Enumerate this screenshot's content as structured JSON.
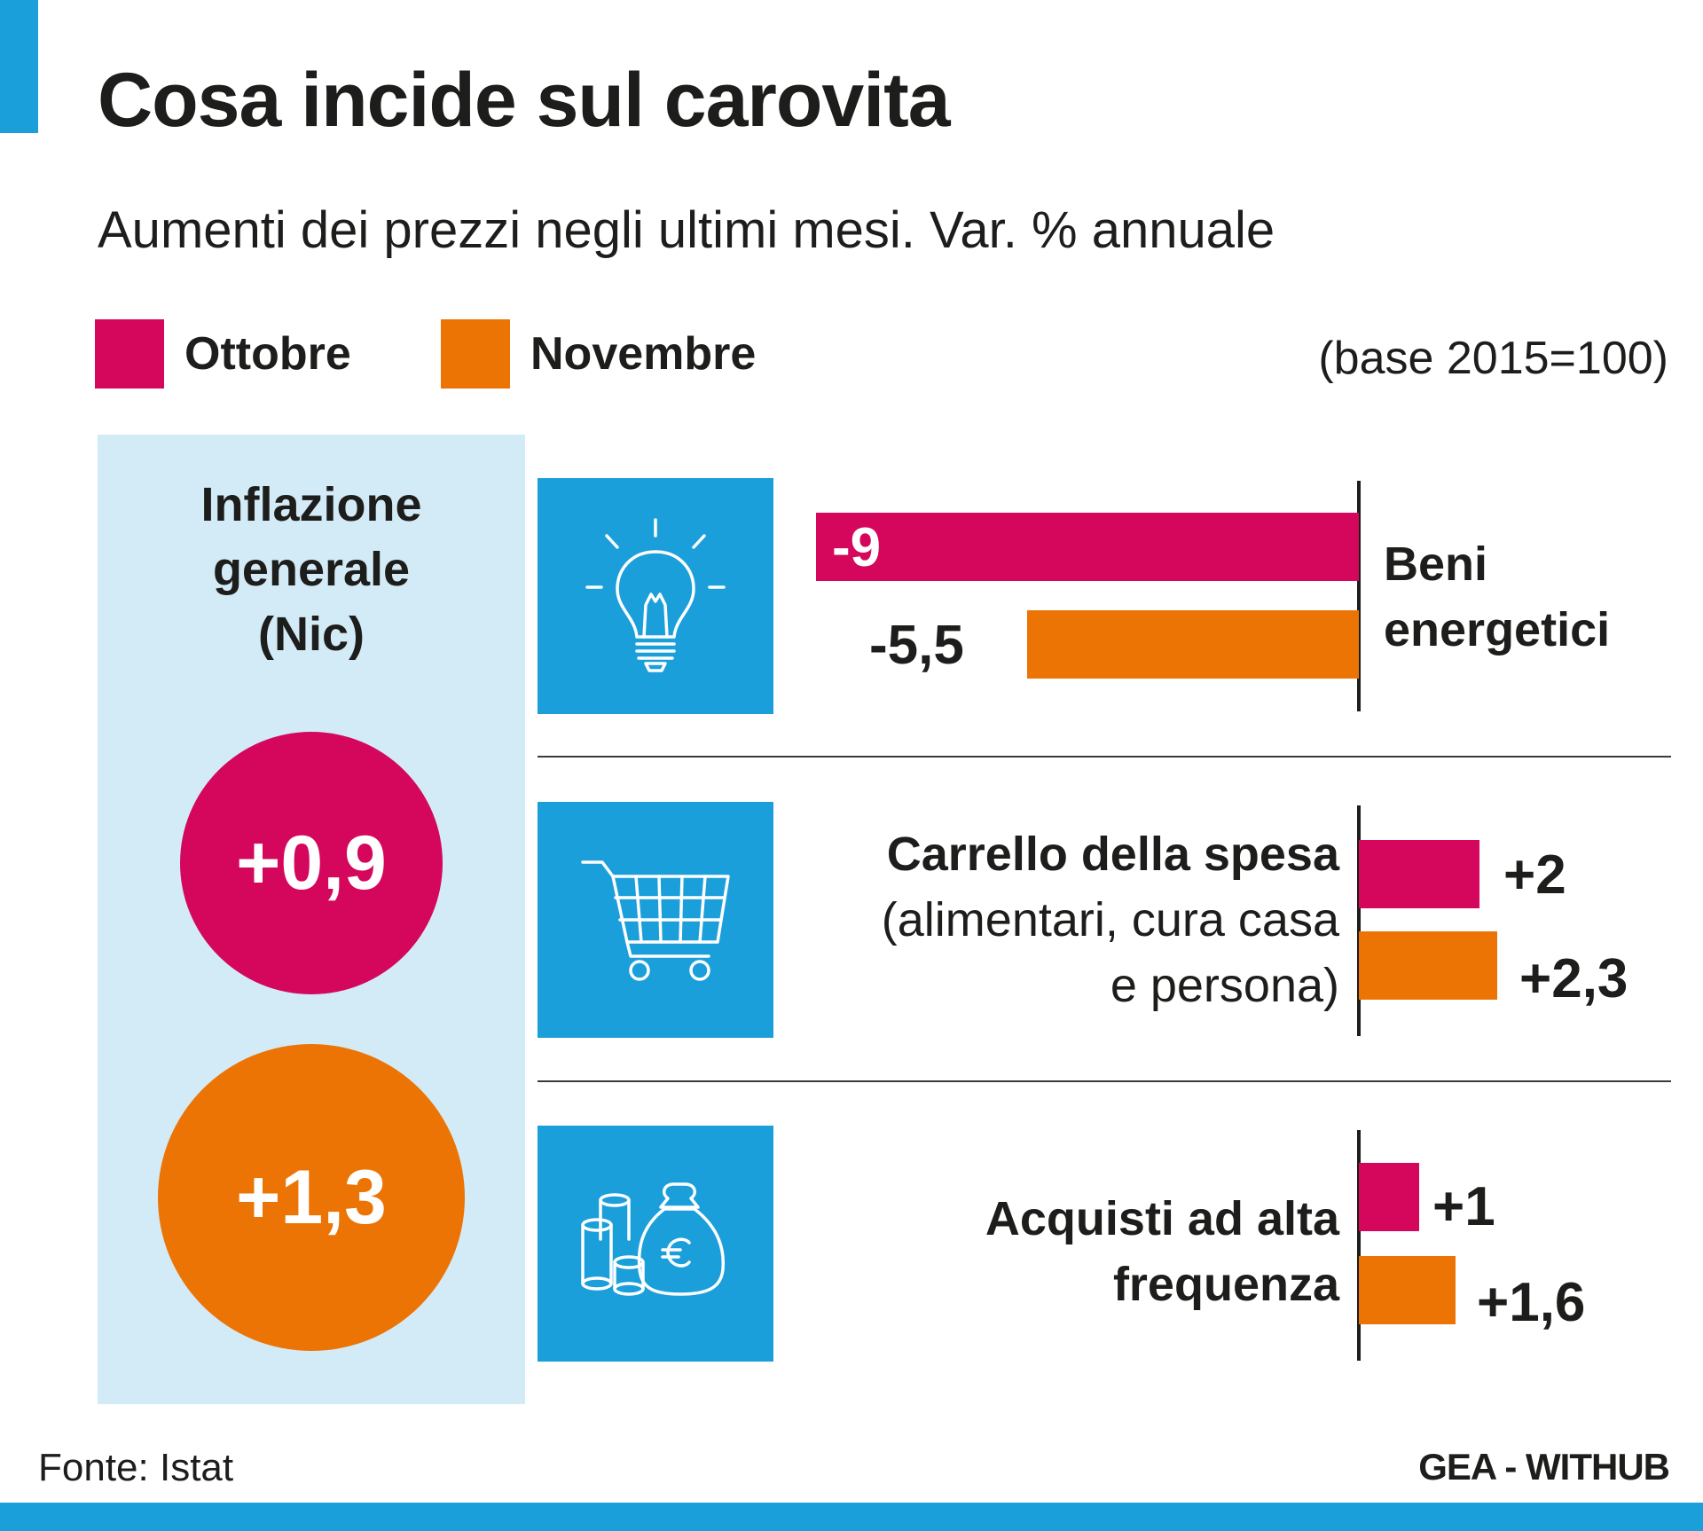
{
  "title": "Cosa incide sul carovita",
  "subtitle": "Aumenti dei prezzi negli ultimi mesi. Var. % annuale",
  "base_note": "(base 2015=100)",
  "source": "Fonte: Istat",
  "credit": "GEA - WITHUB",
  "colors": {
    "ottobre": "#d4075c",
    "novembre": "#ec7405",
    "accent": "#1b9fdb",
    "panel": "#d3ebf7"
  },
  "legend": [
    {
      "label": "Ottobre",
      "color": "#d4075c"
    },
    {
      "label": "Novembre",
      "color": "#ec7405"
    }
  ],
  "general_inflation": {
    "title_lines": [
      "Inflazione",
      "generale",
      "(Nic)"
    ],
    "ottobre_label": "+0,9",
    "novembre_label": "+1,3"
  },
  "categories": [
    {
      "icon": "lightbulb-icon",
      "label_lines": [
        "Beni",
        "energetici"
      ],
      "ottobre_label": "-9",
      "novembre_label": "-5,5"
    },
    {
      "icon": "shopping-cart-icon",
      "label_lines": [
        "Carrello della spesa",
        "(alimentari, cura casa",
        "e persona)"
      ],
      "ottobre_label": "+2",
      "novembre_label": "+2,3"
    },
    {
      "icon": "money-bag-coins-icon",
      "label_lines": [
        "Acquisti ad alta",
        "frequenza"
      ],
      "ottobre_label": "+1",
      "novembre_label": "+1,6"
    }
  ],
  "chart_data": {
    "type": "bar",
    "orientation": "horizontal",
    "unit": "Var. % annuale",
    "categories": [
      "Beni energetici",
      "Carrello della spesa (alimentari, cura casa e persona)",
      "Acquisti ad alta frequenza",
      "Inflazione generale (Nic)"
    ],
    "series": [
      {
        "name": "Ottobre",
        "values": [
          -9,
          2,
          1,
          0.9
        ]
      },
      {
        "name": "Novembre",
        "values": [
          -5.5,
          2.3,
          1.6,
          1.3
        ]
      }
    ]
  }
}
